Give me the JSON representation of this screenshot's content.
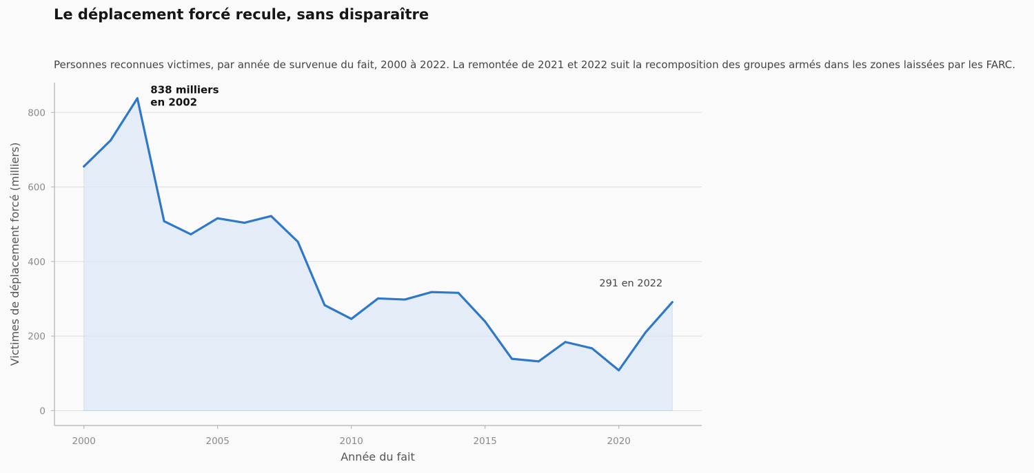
{
  "chart_data": {
    "type": "area",
    "title": "Le déplacement forcé recule, sans disparaître",
    "subtitle": "Personnes reconnues victimes, par année de survenue du fait, 2000 à 2022. La remontée de 2021 et 2022 suit la recomposition des groupes armés dans les zones laissées par les FARC.",
    "xlabel": "Année du fait",
    "ylabel": "Victimes de déplacement forcé (milliers)",
    "x": [
      2000,
      2001,
      2002,
      2003,
      2004,
      2005,
      2006,
      2007,
      2008,
      2009,
      2010,
      2011,
      2012,
      2013,
      2014,
      2015,
      2016,
      2017,
      2018,
      2019,
      2020,
      2021,
      2022
    ],
    "series": [
      {
        "values": [
          655,
          725,
          838,
          508,
          473,
          516,
          504,
          522,
          453,
          283,
          246,
          301,
          298,
          318,
          316,
          239,
          139,
          132,
          184,
          167,
          108,
          210,
          291
        ]
      }
    ],
    "xlim": [
      1998.9,
      2023.1
    ],
    "ylim": [
      -40,
      880
    ],
    "xticks": [
      2000,
      2005,
      2010,
      2015,
      2020
    ],
    "yticks": [
      0,
      200,
      400,
      600,
      800
    ],
    "grid": "horizontal",
    "legend": "none",
    "annotations": [
      {
        "x": 2002,
        "lines": [
          "838 milliers",
          "en 2002"
        ]
      },
      {
        "x": 2022,
        "text": "291 en 2022"
      }
    ],
    "colors": {
      "line": "#2f78c8",
      "fill": "#dce8f6",
      "grid": "#dcdcdc",
      "axis": "#b0b0b0"
    }
  }
}
